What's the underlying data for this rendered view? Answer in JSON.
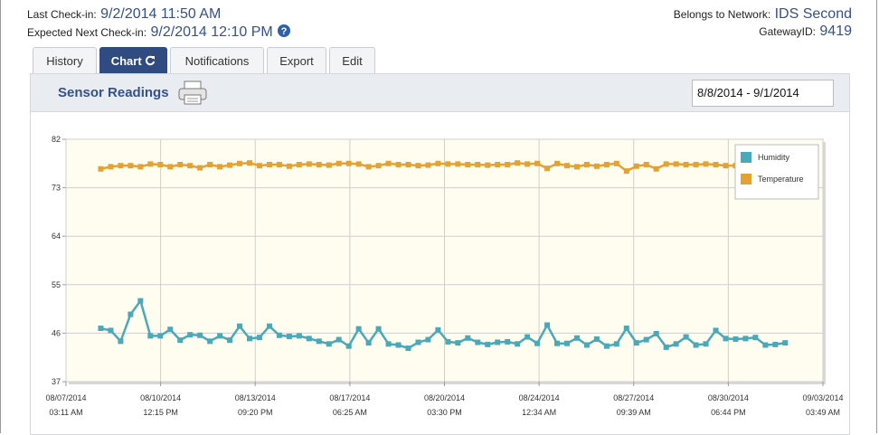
{
  "header": {
    "last_checkin_label": "Last Check-in:",
    "last_checkin": "9/2/2014 11:50 AM",
    "expected_label": "Expected Next Check-in:",
    "expected": "9/2/2014 12:10 PM",
    "network_label": "Belongs to Network:",
    "network": "IDS Second",
    "gateway_label": "GatewayID:",
    "gateway": "9419"
  },
  "tabs": [
    "History",
    "Chart",
    "Notifications",
    "Export",
    "Edit"
  ],
  "panel": {
    "title": "Sensor Readings",
    "date_range": "8/8/2014 - 9/1/2014"
  },
  "chart_data": {
    "type": "line",
    "grid": true,
    "legend": "top-right",
    "x": [
      "2014-08-08 09:00",
      "2014-08-08 17:30",
      "2014-08-09 02:00",
      "2014-08-09 10:30",
      "2014-08-09 19:00",
      "2014-08-10 03:30",
      "2014-08-10 12:00",
      "2014-08-10 20:30",
      "2014-08-11 05:00",
      "2014-08-11 13:30",
      "2014-08-11 22:00",
      "2014-08-12 06:30",
      "2014-08-12 15:00",
      "2014-08-12 23:30",
      "2014-08-13 08:00",
      "2014-08-13 16:30",
      "2014-08-14 01:00",
      "2014-08-14 09:30",
      "2014-08-14 18:00",
      "2014-08-15 02:30",
      "2014-08-15 11:00",
      "2014-08-15 19:30",
      "2014-08-16 04:00",
      "2014-08-16 12:30",
      "2014-08-16 21:00",
      "2014-08-17 05:30",
      "2014-08-17 14:00",
      "2014-08-17 22:30",
      "2014-08-18 07:00",
      "2014-08-18 15:30",
      "2014-08-19 00:00",
      "2014-08-19 08:30",
      "2014-08-19 17:00",
      "2014-08-20 01:30",
      "2014-08-20 10:00",
      "2014-08-20 18:30",
      "2014-08-21 03:00",
      "2014-08-21 11:30",
      "2014-08-21 20:00",
      "2014-08-22 04:30",
      "2014-08-22 13:00",
      "2014-08-22 21:30",
      "2014-08-23 06:00",
      "2014-08-23 14:30",
      "2014-08-23 23:00",
      "2014-08-24 07:30",
      "2014-08-24 16:00",
      "2014-08-25 00:30",
      "2014-08-25 09:00",
      "2014-08-25 17:30",
      "2014-08-26 02:00",
      "2014-08-26 10:30",
      "2014-08-26 19:00",
      "2014-08-27 03:30",
      "2014-08-27 12:00",
      "2014-08-27 20:30",
      "2014-08-28 05:00",
      "2014-08-28 13:30",
      "2014-08-28 22:00",
      "2014-08-29 06:30",
      "2014-08-29 15:00",
      "2014-08-29 23:30",
      "2014-08-30 08:00",
      "2014-08-30 16:30",
      "2014-08-31 01:00",
      "2014-08-31 09:30",
      "2014-08-31 18:00",
      "2014-09-01 02:30",
      "2014-09-01 11:00",
      "2014-09-01 19:30"
    ],
    "series": [
      {
        "name": "Humidity",
        "color": "#4aa9b9",
        "values": [
          46.9,
          46.5,
          44.5,
          49.5,
          52,
          45.5,
          45.5,
          46.7,
          44.7,
          45.7,
          45.6,
          44.5,
          45.5,
          44.7,
          47.3,
          45,
          45.2,
          47.3,
          45.6,
          45.4,
          45.5,
          45,
          44.5,
          44,
          44.8,
          43.6,
          46.8,
          44.2,
          46.8,
          44,
          43.8,
          43.2,
          44.3,
          44.8,
          46.6,
          44.4,
          44.2,
          45.1,
          44.3,
          43.9,
          44.3,
          44.4,
          44,
          45.3,
          44.1,
          47.5,
          44.1,
          44.1,
          45.1,
          43.8,
          44.9,
          43.6,
          44,
          46.9,
          44.2,
          44.8,
          45.9,
          43.4,
          44,
          45.3,
          43.8,
          44,
          46.5,
          45,
          44.9,
          45,
          45.2,
          43.8,
          43.9,
          44.2
        ]
      },
      {
        "name": "Temperature",
        "color": "#e3a232",
        "values": [
          76.5,
          76.9,
          77.1,
          77.1,
          76.9,
          77.4,
          77.3,
          76.9,
          77.3,
          77.1,
          76.7,
          77.3,
          76.9,
          77.2,
          77.5,
          77.6,
          77.1,
          77.3,
          77.3,
          77,
          77.3,
          77.4,
          77.3,
          77.2,
          77.5,
          77.5,
          77.4,
          76.9,
          77.1,
          77.5,
          77.3,
          77.3,
          77.1,
          77.2,
          77.5,
          77.4,
          77.4,
          77.3,
          77.3,
          77.2,
          77.3,
          77.3,
          77.6,
          77.4,
          77.5,
          76.6,
          77.5,
          77.1,
          76.9,
          77.3,
          77,
          77.3,
          77.5,
          76.1,
          77,
          77.3,
          76.5,
          77.4,
          77.4,
          77.3,
          77.3,
          77.4,
          77.3,
          77.1,
          77.1,
          77.3,
          77,
          77.3,
          77.1,
          77.3
        ]
      }
    ],
    "ylim": [
      37,
      82
    ],
    "yticks": [
      37,
      46,
      55,
      64,
      73,
      82
    ],
    "xlim": [
      "2014-08-07 03:11",
      "2014-09-03 03:49"
    ],
    "xticks": [
      {
        "value": "2014-08-07 03:11",
        "label": [
          "08/07/2014",
          "03:11 AM"
        ]
      },
      {
        "value": "2014-08-10 12:15",
        "label": [
          "08/10/2014",
          "12:15 PM"
        ]
      },
      {
        "value": "2014-08-13 21:20",
        "label": [
          "08/13/2014",
          "09:20 PM"
        ]
      },
      {
        "value": "2014-08-17 06:25",
        "label": [
          "08/17/2014",
          "06:25 AM"
        ]
      },
      {
        "value": "2014-08-20 15:30",
        "label": [
          "08/20/2014",
          "03:30 PM"
        ]
      },
      {
        "value": "2014-08-24 00:34",
        "label": [
          "08/24/2014",
          "12:34 AM"
        ]
      },
      {
        "value": "2014-08-27 09:39",
        "label": [
          "08/27/2014",
          "09:39 AM"
        ]
      },
      {
        "value": "2014-08-30 18:44",
        "label": [
          "08/30/2014",
          "06:44 PM"
        ]
      },
      {
        "value": "2014-09-03 03:49",
        "label": [
          "09/03/2014",
          "03:49 AM"
        ]
      }
    ]
  }
}
